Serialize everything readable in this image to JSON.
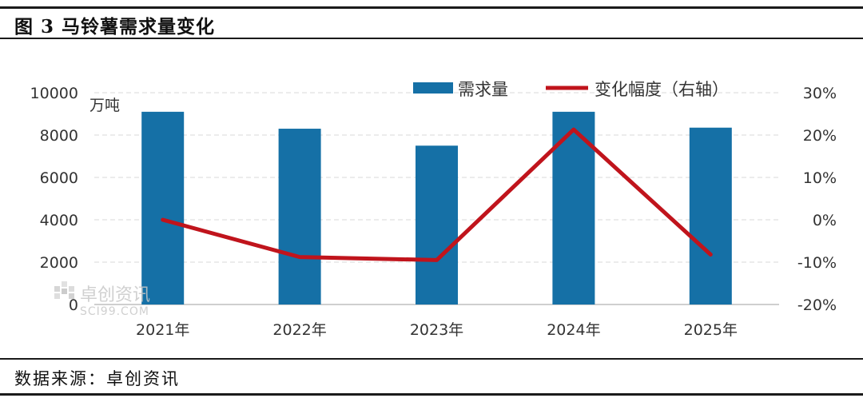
{
  "figure": {
    "title": "图 3  马铃薯需求量变化",
    "source": "数据来源：卓创资讯"
  },
  "watermark": {
    "brand": "卓创资讯",
    "site": "SCI99.COM"
  },
  "chart_data": {
    "type": "bar+line",
    "categories": [
      "2021年",
      "2022年",
      "2023年",
      "2024年",
      "2025年"
    ],
    "series": [
      {
        "name": "需求量",
        "type": "bar",
        "axis": "left",
        "color": "#1570a6",
        "values": [
          9100,
          8300,
          7500,
          9100,
          8350
        ]
      },
      {
        "name": "变化幅度（右轴）",
        "type": "line",
        "axis": "right",
        "color": "#c0141c",
        "values": [
          0,
          -8.8,
          -9.5,
          21.3,
          -8.2
        ]
      }
    ],
    "y_left": {
      "label": "万吨",
      "min": 0,
      "max": 10000,
      "ticks": [
        "0",
        "2000",
        "4000",
        "6000",
        "8000",
        "10000"
      ],
      "tick_values": [
        0,
        2000,
        4000,
        6000,
        8000,
        10000
      ]
    },
    "y_right": {
      "min": -20,
      "max": 30,
      "ticks": [
        "-20%",
        "-10%",
        "0%",
        "10%",
        "20%",
        "30%"
      ],
      "tick_values": [
        -20,
        -10,
        0,
        10,
        20,
        30
      ]
    },
    "grid": "dashed horizontal",
    "legend": "top-right"
  }
}
